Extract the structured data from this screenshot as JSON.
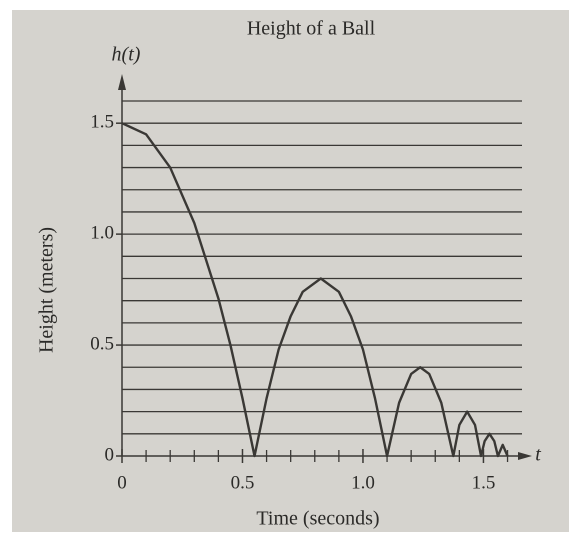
{
  "chart_data": {
    "type": "line",
    "title": "Height of a Ball",
    "y_axis_name": "h(t)",
    "x_axis_name": "t",
    "x_label": "Time (seconds)",
    "y_label": "Height (meters)",
    "xlim": [
      0,
      1.66
    ],
    "ylim": [
      0,
      1.6
    ],
    "xticks": [
      0,
      0.5,
      {
        "value": 1,
        "label": "1.0"
      },
      1.5
    ],
    "yticks": [
      0,
      0.5,
      {
        "value": 1,
        "label": "1.0"
      },
      1.5
    ],
    "xminorticks": [
      0.1,
      0.2,
      0.3,
      0.4,
      0.6,
      0.7,
      0.8,
      0.9,
      1.1,
      1.2,
      1.3,
      1.4,
      1.6
    ],
    "ygrid": [
      0.1,
      0.2,
      0.3,
      0.4,
      0.5,
      0.6,
      0.7,
      0.8,
      0.9,
      1,
      1.1,
      1.2,
      1.3,
      1.4,
      1.5,
      1.6
    ],
    "grid": true,
    "x": [
      0,
      0.1,
      0.2,
      0.3,
      0.4,
      0.45,
      0.5,
      0.55,
      0.6,
      0.65,
      0.7,
      0.75,
      0.825,
      0.9,
      0.95,
      1.0,
      1.05,
      1.1,
      1.15,
      1.2,
      1.2375,
      1.275,
      1.325,
      1.375,
      1.4,
      1.4325,
      1.465,
      1.49,
      1.505,
      1.525,
      1.545,
      1.56,
      1.58,
      1.6
    ],
    "series": [
      {
        "name": "h(t)",
        "color": "#3a3835",
        "values": [
          1.5,
          1.45,
          1.3,
          1.05,
          0.71,
          0.5,
          0.26,
          0,
          0.26,
          0.48,
          0.63,
          0.74,
          0.8,
          0.74,
          0.63,
          0.48,
          0.26,
          0,
          0.24,
          0.37,
          0.4,
          0.37,
          0.24,
          0,
          0.14,
          0.2,
          0.14,
          0,
          0.067,
          0.1,
          0.067,
          0,
          0.05,
          0
        ]
      }
    ]
  }
}
